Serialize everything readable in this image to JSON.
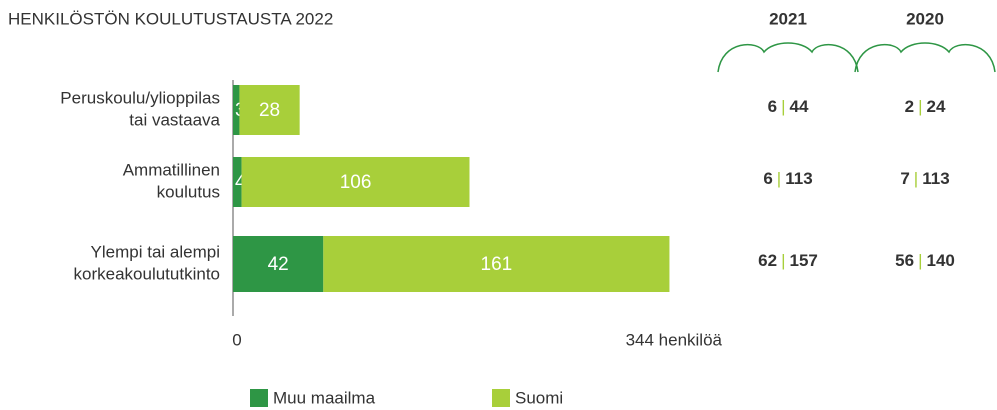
{
  "chart_data": {
    "type": "stacked-barh",
    "title": "HENKILÖSTÖN KOULUTUSTAUSTA 2022",
    "categories": [
      "Peruskoulu/ylioppilas tai vastaava",
      "Ammatillinen koulutus",
      "Ylempi tai alempi korkeakoulututkinto"
    ],
    "category_lines": [
      [
        "Peruskoulu/ylioppilas",
        "tai vastaava"
      ],
      [
        "Ammatillinen",
        "koulutus"
      ],
      [
        "Ylempi tai alempi",
        "korkeakoulututkinto"
      ]
    ],
    "series": [
      {
        "name": "Muu maailma",
        "color": "#2e9645",
        "values": [
          3,
          4,
          42
        ]
      },
      {
        "name": "Suomi",
        "color": "#a8cf3a",
        "values": [
          28,
          106,
          161
        ]
      }
    ],
    "xlim": [
      0,
      344
    ],
    "xticks": [
      0,
      {
        "value": 344,
        "label": "344 henkilöä"
      }
    ]
  },
  "comparison": [
    {
      "year": "2021",
      "values": [
        [
          6,
          44
        ],
        [
          6,
          113
        ],
        [
          62,
          157
        ]
      ]
    },
    {
      "year": "2020",
      "values": [
        [
          2,
          24
        ],
        [
          7,
          113
        ],
        [
          56,
          140
        ]
      ]
    }
  ]
}
